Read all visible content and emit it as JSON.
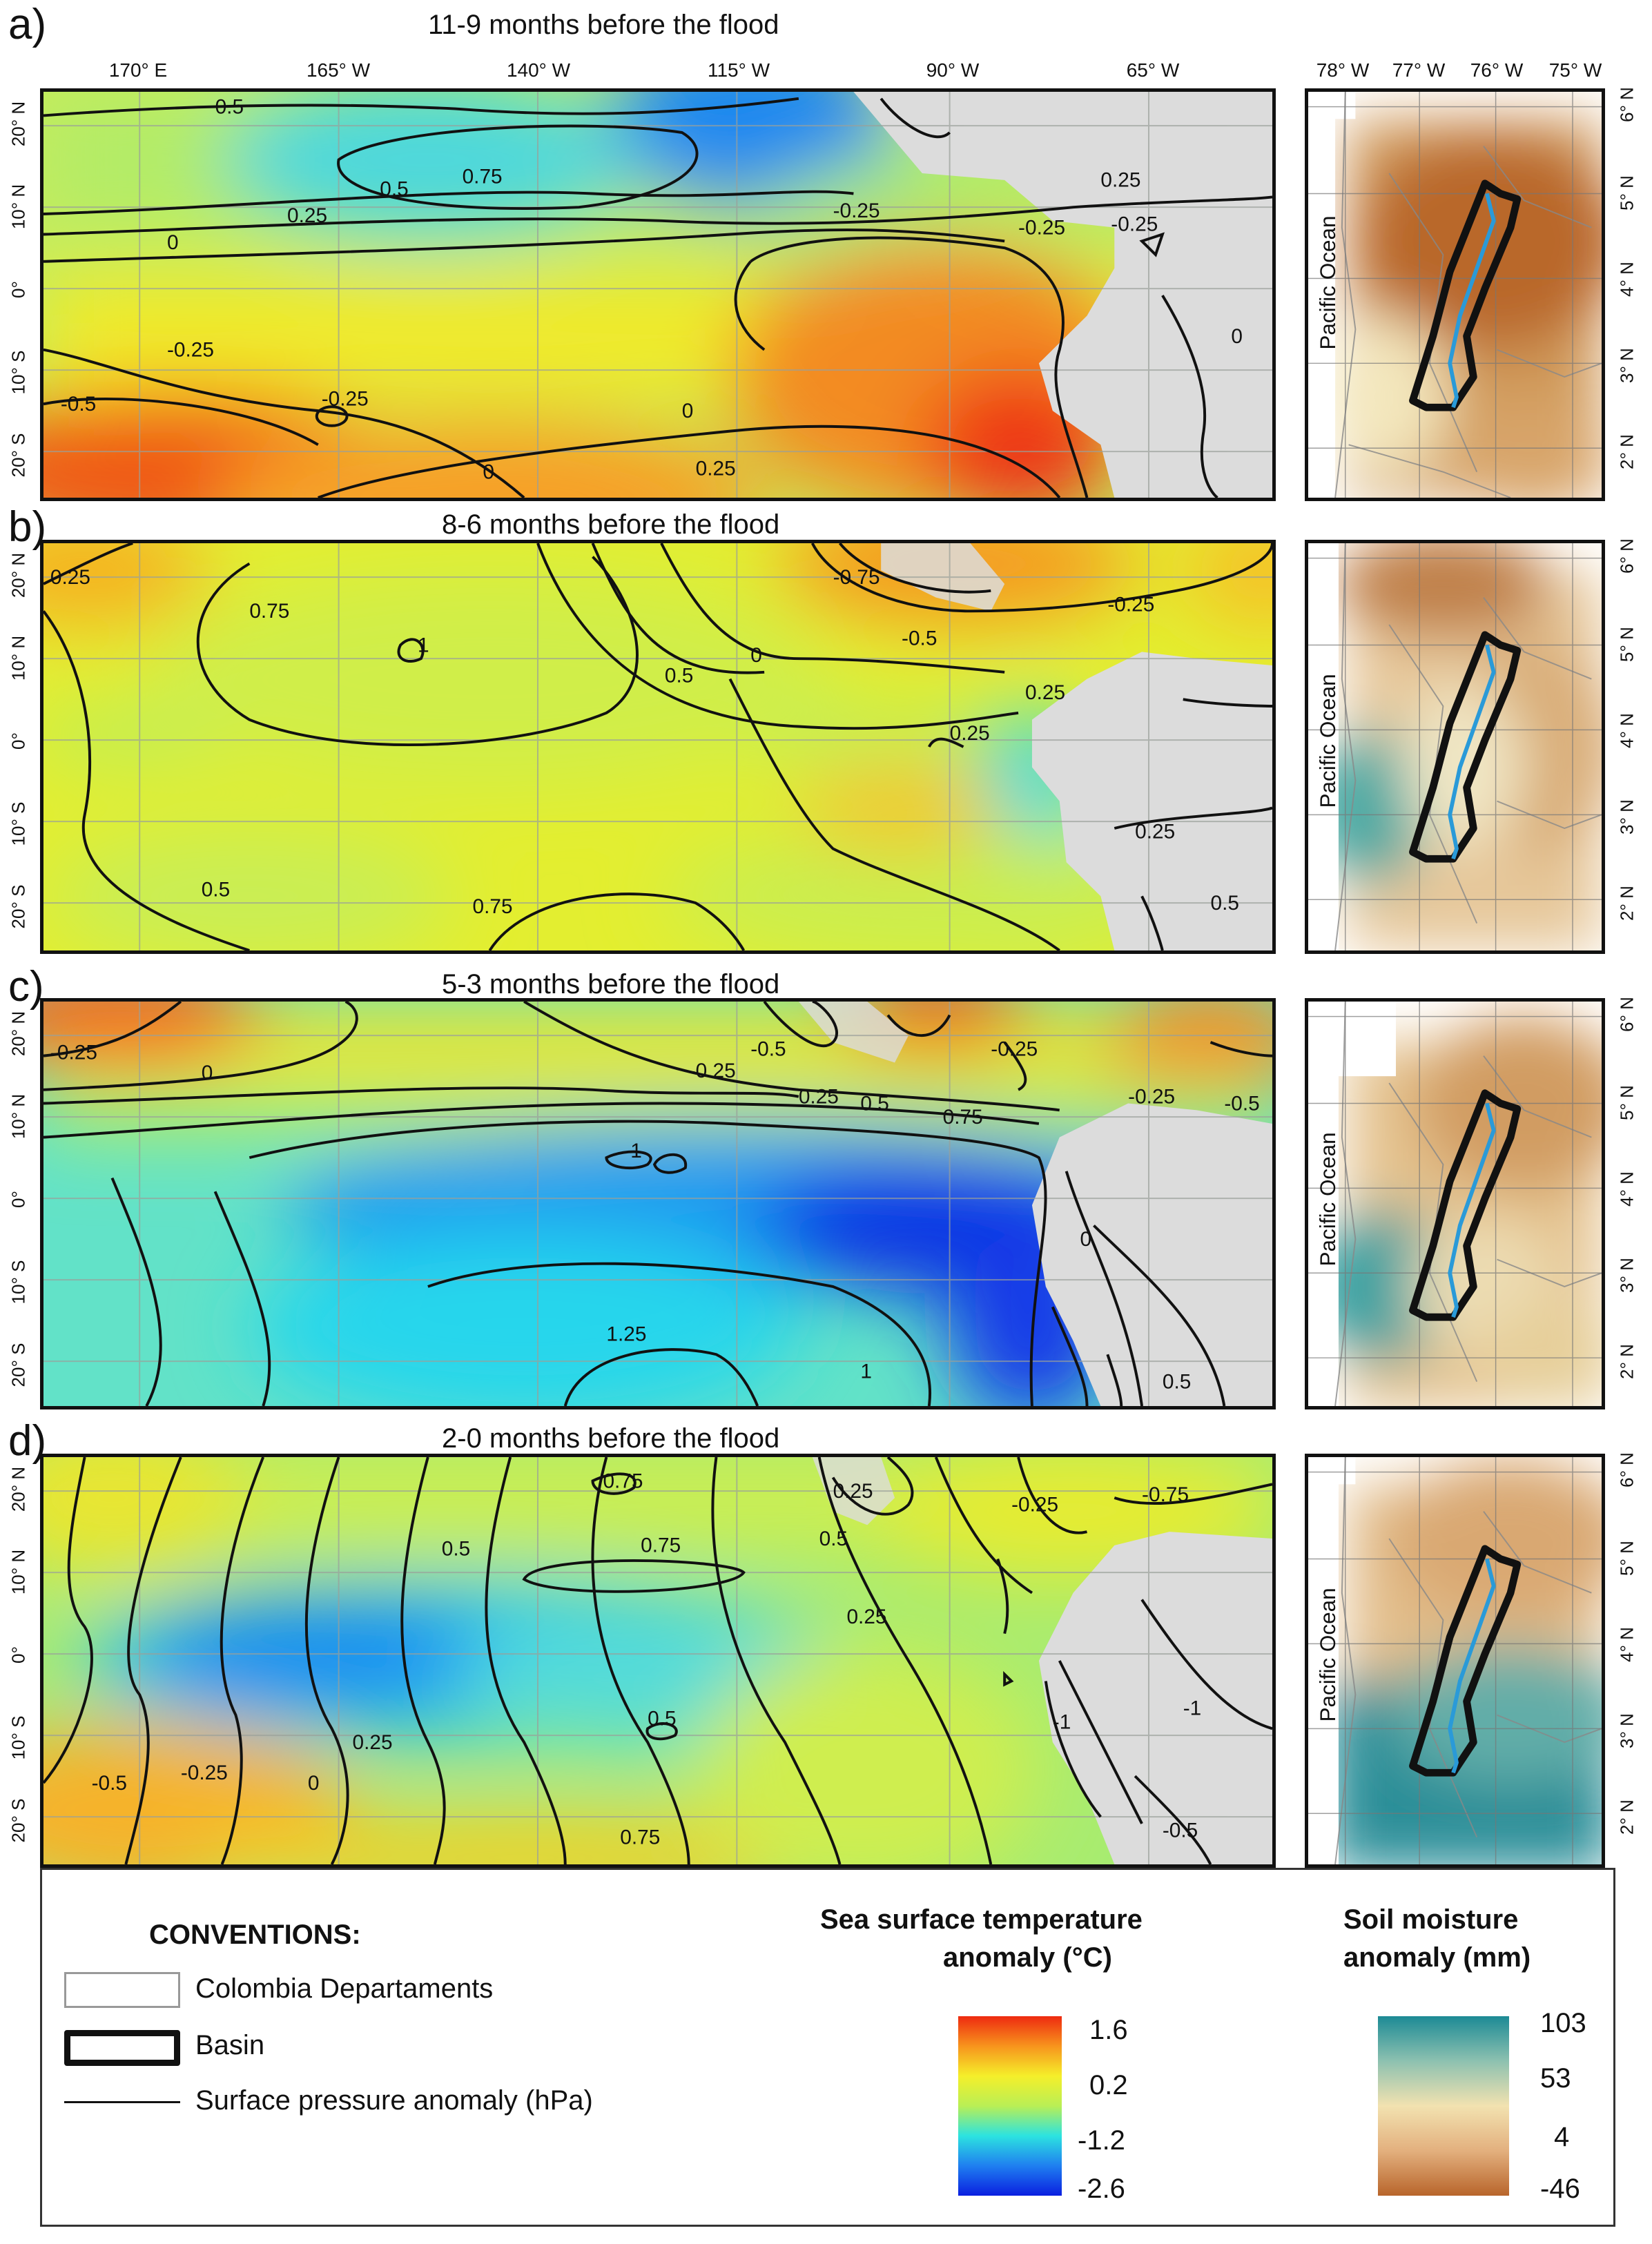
{
  "panels": [
    {
      "letter": "a)",
      "title": "11-9 months before the flood"
    },
    {
      "letter": "b)",
      "title": "8-6 months before the flood"
    },
    {
      "letter": "c)",
      "title": "5-3 months before the flood"
    },
    {
      "letter": "d)",
      "title": "2-0 months before the flood"
    }
  ],
  "main_lon_ticks": [
    "170° E",
    "165° W",
    "140° W",
    "115° W",
    "90° W",
    "65° W"
  ],
  "main_lat_ticks": [
    "20° N",
    "10° N",
    "0°",
    "10° S",
    "20° S"
  ],
  "inset_lon_ticks": [
    "78° W",
    "77° W",
    "76° W",
    "75° W"
  ],
  "inset_lat_ticks": [
    "6° N",
    "5° N",
    "4° N",
    "3° N",
    "2° N"
  ],
  "inset_ocean_label": "Pacific Ocean",
  "contours": {
    "a": [
      "0.5",
      "0.75",
      "0.5",
      "0.25",
      "0",
      "-0.25",
      "-0.25",
      "-0.5",
      "0",
      "0",
      "0.25",
      "-0.25",
      "-0.25",
      "0.25",
      "-0.25",
      "0"
    ],
    "b": [
      "0.25",
      "0.75",
      "1",
      "0.5",
      "0",
      "-0.5",
      "-0.25",
      "0.25",
      "0.25",
      "0.25",
      "0.5",
      "0.75",
      "0.5",
      "-0.75"
    ],
    "c": [
      "-0.25",
      "0",
      "-0.25",
      "0.25",
      "0.5",
      "0.75",
      "1",
      "1.25",
      "1",
      "-0.5",
      "-0.25",
      "-0.25",
      "-0.5",
      "0",
      "0.5"
    ],
    "d": [
      "0.75",
      "0.75",
      "0.5",
      "0.25",
      "0.25",
      "0.5",
      "0",
      "-0.25",
      "-0.5",
      "0.75",
      "0.25",
      "-1",
      "-1",
      "-0.25",
      "-0.75",
      "-0.5",
      "0.5"
    ]
  },
  "legend": {
    "heading": "CONVENTIONS:",
    "items": [
      {
        "label": "Colombia Departaments"
      },
      {
        "label": "Basin"
      },
      {
        "label": "Surface pressure anomaly (hPa)"
      }
    ],
    "sst": {
      "title_line1": "Sea surface temperature",
      "title_line2": "anomaly (°C)",
      "ticks": [
        "1.6",
        "0.2",
        "-1.2",
        "-2.6"
      ],
      "colors": [
        "#ee2a10",
        "#f7941d",
        "#f5ef2a",
        "#b9ef55",
        "#2ce3e0",
        "#1f7ff0",
        "#0a1fe0"
      ]
    },
    "soil": {
      "title_line1": "Soil moisture",
      "title_line2": "anomaly (mm)",
      "ticks": [
        "103",
        "53",
        "4",
        "-46"
      ],
      "colors": [
        "#1c8a95",
        "#8dc1b0",
        "#f2e2b0",
        "#e3b07e",
        "#b8652b"
      ]
    }
  }
}
